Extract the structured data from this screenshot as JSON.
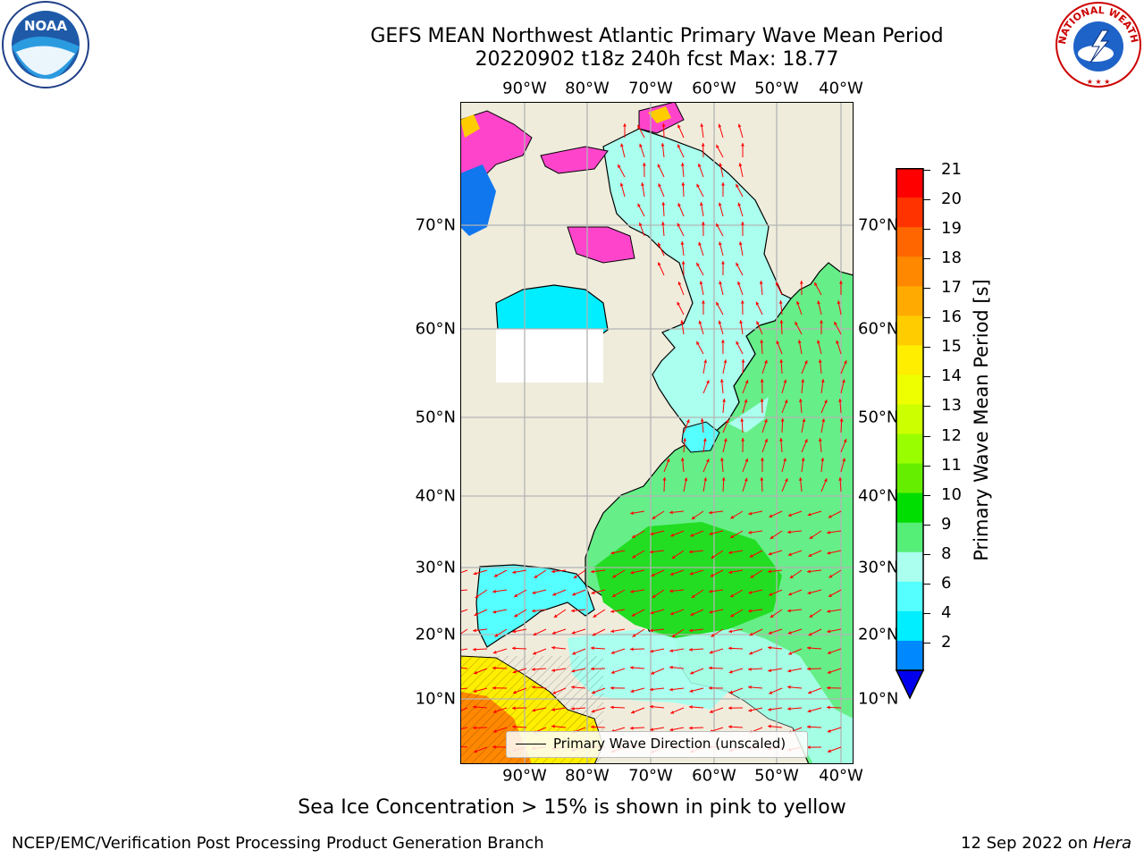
{
  "title": {
    "line1": "GEFS MEAN Northwest Atlantic Primary Wave Mean Period",
    "line2": "20220902 t18z 240h fcst   Max: 18.77"
  },
  "logos": {
    "left": "NOAA",
    "right": "NATIONAL WEATHER SERVICE"
  },
  "map": {
    "lon_labels": [
      "90°W",
      "80°W",
      "70°W",
      "60°W",
      "50°W",
      "40°W"
    ],
    "lat_labels": [
      "70°N",
      "60°N",
      "50°N",
      "40°N",
      "30°N",
      "20°N",
      "10°N"
    ],
    "legend_label": "Primary Wave Direction (unscaled)",
    "colors": {
      "land": "#efecdc",
      "grid": "#b4b4b4",
      "arrow": "#ff0000",
      "sea_ice": "#ff44cc"
    }
  },
  "colorbar": {
    "label": "Primary Wave Mean Period [s]",
    "ticks": [
      "21",
      "20",
      "19",
      "18",
      "17",
      "16",
      "15",
      "14",
      "13",
      "12",
      "11",
      "10",
      "9",
      "8",
      "6",
      "4",
      "2"
    ],
    "colors": [
      "#ff0000",
      "#ff3300",
      "#ff6600",
      "#ff8800",
      "#ffaa00",
      "#ffcc00",
      "#ffee00",
      "#eeff00",
      "#ccff00",
      "#99ff00",
      "#66ee00",
      "#00dd00",
      "#55ee77",
      "#aaffee",
      "#55ffff",
      "#00eeff",
      "#0088ff",
      "#0000ee"
    ]
  },
  "note": "Sea Ice Concentration > 15% is shown in pink to yellow",
  "footer": {
    "left": "NCEP/EMC/Verification Post Processing Product Generation Branch",
    "right_date": "12 Sep 2022 on ",
    "right_machine": "Hera"
  }
}
